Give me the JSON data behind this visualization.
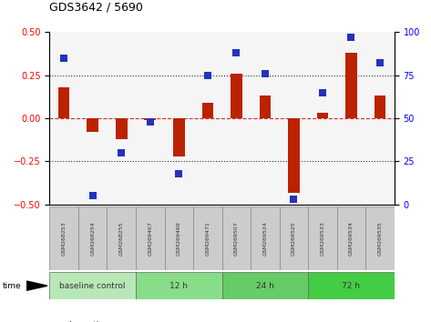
{
  "title": "GDS3642 / 5690",
  "samples": [
    "GSM268253",
    "GSM268254",
    "GSM268255",
    "GSM269467",
    "GSM269469",
    "GSM269471",
    "GSM269507",
    "GSM269524",
    "GSM269525",
    "GSM269533",
    "GSM269534",
    "GSM269535"
  ],
  "log_ratio": [
    0.18,
    -0.08,
    -0.12,
    -0.01,
    -0.22,
    0.09,
    0.26,
    0.13,
    -0.43,
    0.03,
    0.38,
    0.13
  ],
  "percentile_rank": [
    85,
    5,
    30,
    48,
    18,
    75,
    88,
    76,
    3,
    65,
    97,
    82
  ],
  "groups": [
    {
      "label": "baseline control",
      "start": 0,
      "end": 3,
      "color": "#b8e8b8"
    },
    {
      "label": "12 h",
      "start": 3,
      "end": 6,
      "color": "#88dd88"
    },
    {
      "label": "24 h",
      "start": 6,
      "end": 9,
      "color": "#66cc66"
    },
    {
      "label": "72 h",
      "start": 9,
      "end": 12,
      "color": "#44cc44"
    }
  ],
  "ylim_left": [
    -0.5,
    0.5
  ],
  "ylim_right": [
    0,
    100
  ],
  "yticks_left": [
    -0.5,
    -0.25,
    0,
    0.25,
    0.5
  ],
  "yticks_right": [
    0,
    25,
    50,
    75,
    100
  ],
  "bar_color": "#bb2200",
  "dot_color": "#2233bb",
  "hline_color": "#333333",
  "zero_line_color": "#cc3333",
  "facecolor": "#f5f5f5",
  "bar_width": 0.4,
  "dot_size": 30,
  "sample_box_color": "#cccccc",
  "sample_box_edge": "#888888",
  "sample_text_color": "#333333"
}
